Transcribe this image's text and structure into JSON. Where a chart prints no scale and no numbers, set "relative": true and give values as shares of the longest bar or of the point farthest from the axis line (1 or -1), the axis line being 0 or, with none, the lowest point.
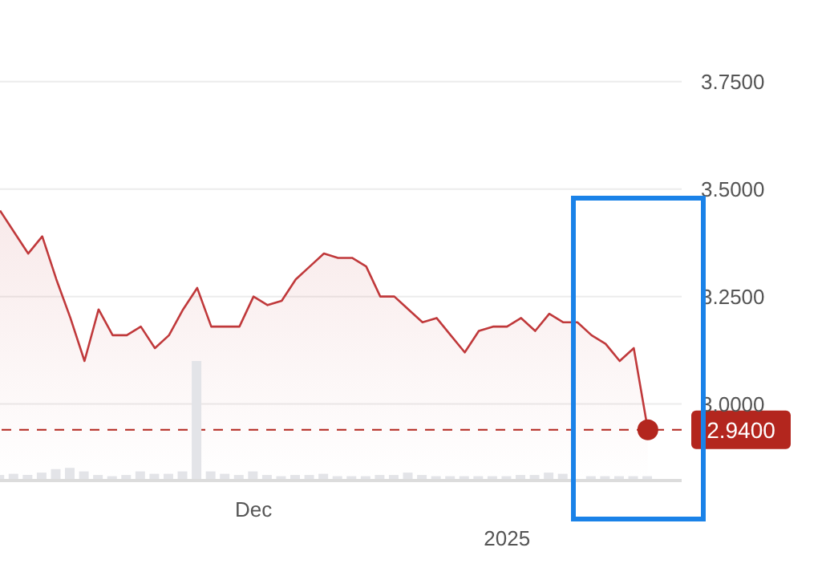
{
  "chart_data": [
    {
      "type": "area",
      "categories": [
        null,
        null,
        null,
        null,
        null,
        null,
        null,
        null,
        null,
        null,
        null,
        null,
        null,
        null,
        null,
        null,
        null,
        null,
        "Dec",
        null,
        null,
        null,
        null,
        null,
        null,
        null,
        null,
        null,
        null,
        null,
        null,
        null,
        null,
        null,
        null,
        null,
        "2025",
        null,
        null,
        null,
        null,
        null,
        null,
        null,
        null,
        null,
        null
      ],
      "series": [
        {
          "color": "#c0393b",
          "values": [
            3.45,
            3.4,
            3.35,
            3.39,
            3.29,
            3.2,
            3.1,
            3.22,
            3.16,
            3.16,
            3.18,
            3.13,
            3.16,
            3.22,
            3.27,
            3.18,
            3.18,
            3.18,
            3.25,
            3.23,
            3.24,
            3.29,
            3.32,
            3.35,
            3.34,
            3.34,
            3.32,
            3.25,
            3.25,
            3.22,
            3.19,
            3.2,
            3.16,
            3.12,
            3.17,
            3.18,
            3.18,
            3.2,
            3.17,
            3.21,
            3.19,
            3.19,
            3.16,
            3.14,
            3.1,
            3.13,
            2.94
          ]
        },
        {
          "type": "scatter",
          "color": "#b3261e",
          "values": [
            null,
            null,
            null,
            null,
            null,
            null,
            null,
            null,
            null,
            null,
            null,
            null,
            null,
            null,
            null,
            null,
            null,
            null,
            null,
            null,
            null,
            null,
            null,
            null,
            null,
            null,
            null,
            null,
            null,
            null,
            null,
            null,
            null,
            null,
            null,
            null,
            null,
            null,
            null,
            null,
            null,
            null,
            null,
            null,
            null,
            null,
            2.94
          ]
        }
      ],
      "ylim": [
        2.82,
        3.94
      ],
      "yticks": [
        {
          "value": 3.0,
          "label": "3.0000"
        },
        {
          "value": 3.25,
          "label": "3.2500"
        },
        {
          "value": 3.5,
          "label": "3.5000"
        },
        {
          "value": 3.75,
          "label": "3.7500"
        }
      ],
      "grid": "y",
      "ref_lines": [
        {
          "axis": "y",
          "value": 2.94,
          "label": "2.9400",
          "color": "#b3261e",
          "line_style": "dashed"
        }
      ]
    },
    {
      "type": "bar",
      "relative": true,
      "categories": [
        null,
        null,
        null,
        null,
        null,
        null,
        null,
        null,
        null,
        null,
        null,
        null,
        null,
        null,
        null,
        null,
        null,
        null,
        null,
        null,
        null,
        null,
        null,
        null,
        null,
        null,
        null,
        null,
        null,
        null,
        null,
        null,
        null,
        null,
        null,
        null,
        null,
        null,
        null,
        null,
        null,
        null,
        null,
        null,
        null,
        null,
        null
      ],
      "values": [
        0.04,
        0.05,
        0.04,
        0.06,
        0.09,
        0.1,
        0.07,
        0.04,
        0.03,
        0.04,
        0.07,
        0.05,
        0.05,
        0.07,
        1,
        0.07,
        0.05,
        0.04,
        0.07,
        0.04,
        0.03,
        0.04,
        0.04,
        0.05,
        0.03,
        0.03,
        0.03,
        0.04,
        0.04,
        0.06,
        0.04,
        0.03,
        0.03,
        0.03,
        0.03,
        0.03,
        0.03,
        0.04,
        0.04,
        0.06,
        0.05,
        null,
        0.03,
        0.03,
        0.03,
        0.03,
        0.03
      ],
      "color": "#e3e4e8"
    }
  ]
}
